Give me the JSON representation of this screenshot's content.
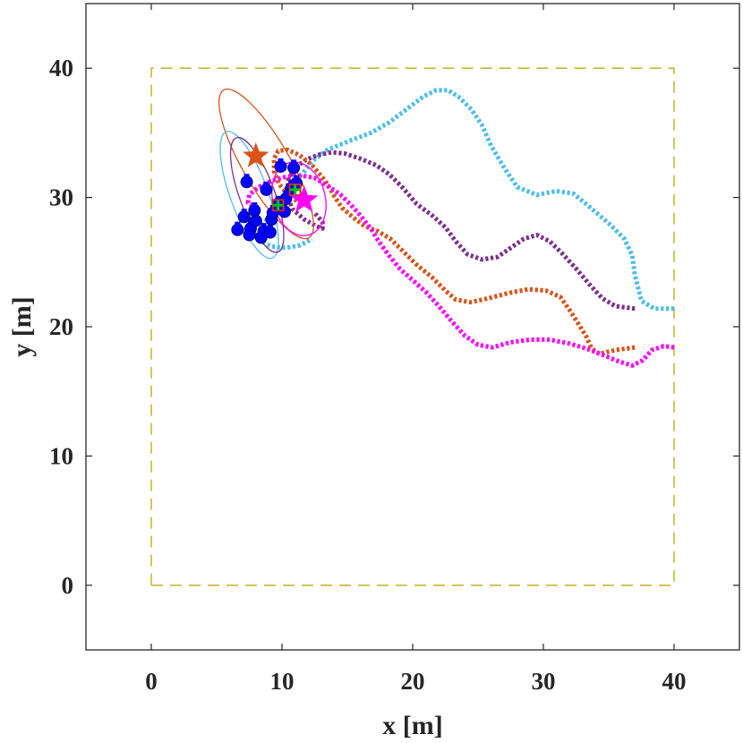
{
  "chart_data": {
    "type": "line",
    "title": "",
    "xlabel": "x [m]",
    "ylabel": "y [m]",
    "xlim": [
      -5,
      45
    ],
    "ylim": [
      -5,
      45
    ],
    "xticks": [
      0,
      10,
      20,
      30,
      40
    ],
    "yticks": [
      0,
      10,
      20,
      30,
      40
    ],
    "xtick_labels": [
      "0",
      "10",
      "20",
      "30",
      "40"
    ],
    "ytick_labels": [
      "0",
      "10",
      "20",
      "30",
      "40"
    ],
    "grid": false,
    "legend": "none",
    "boundary": {
      "name": "workspace-boundary",
      "color": "#C9B82C",
      "x": [
        0,
        40,
        40,
        0,
        0
      ],
      "y": [
        0,
        0,
        40,
        40,
        0
      ]
    },
    "series": [
      {
        "name": "trajectory-cyan",
        "color": "#4DBEEE",
        "x": [
          40,
          38.5,
          37.5,
          37,
          36.8,
          36.2,
          35,
          33.5,
          32.3,
          31,
          29.5,
          28,
          27,
          26,
          25.3,
          24.5,
          23.5,
          22.7,
          21.8,
          20.8,
          19.5,
          18.2,
          16.8,
          15.2,
          13.5,
          12.3,
          11.3,
          10.4,
          9.4,
          8.6,
          8.3,
          8.4,
          9.2,
          10.3,
          11.4,
          12.3
        ],
        "y": [
          21.4,
          21.4,
          22,
          24,
          25.5,
          26.8,
          28,
          29.3,
          30.3,
          30.5,
          30.2,
          30.8,
          32.3,
          34,
          35.6,
          36.8,
          37.8,
          38.3,
          38.3,
          37.8,
          36.8,
          35.8,
          35,
          34.4,
          33.7,
          32.8,
          31.5,
          30.2,
          29,
          28,
          27.2,
          26.6,
          26.2,
          26.1,
          26.3,
          26.8
        ]
      },
      {
        "name": "trajectory-purple",
        "color": "#7E2F8E",
        "x": [
          37,
          35.5,
          34.5,
          33.5,
          32.5,
          31.5,
          30.5,
          29.5,
          28.5,
          27.5,
          26.5,
          25.3,
          24.2,
          23.3,
          22.5,
          21.5,
          20.3,
          19.2,
          18.2,
          17.2,
          16,
          14.8,
          13.8,
          12.8,
          11.8,
          11,
          10.5,
          10.4,
          10.8,
          11.7,
          12.6,
          13.1,
          13.1,
          12.5
        ],
        "y": [
          21.4,
          21.6,
          22.2,
          23.3,
          24.5,
          25.6,
          26.6,
          27.1,
          26.8,
          26.1,
          25.4,
          25.2,
          25.6,
          26.6,
          27.7,
          28.6,
          29.5,
          30.8,
          31.8,
          32.5,
          33,
          33.4,
          33.5,
          33.3,
          32.9,
          32.3,
          31.4,
          30.2,
          29.1,
          28.3,
          27.8,
          27.6,
          28.1,
          28.8
        ]
      },
      {
        "name": "trajectory-orange",
        "color": "#D95319",
        "x": [
          37,
          35.5,
          34.3,
          33.7,
          33.3,
          32.7,
          32,
          31.3,
          30.2,
          28.8,
          27.3,
          25.8,
          24.4,
          23.3,
          22.5,
          21.5,
          20.3,
          19.3,
          18.3,
          17.3,
          16.3,
          15.4,
          14.6,
          14,
          13.3,
          12.3,
          11.3,
          10.4,
          9.7,
          9.4,
          9.4,
          9.8,
          10.5,
          11.3
        ],
        "y": [
          18.4,
          18.2,
          17.9,
          18.3,
          19.2,
          20.2,
          21.3,
          22.3,
          22.8,
          22.9,
          22.6,
          22.2,
          21.9,
          22.1,
          22.8,
          23.8,
          24.8,
          25.8,
          26.8,
          27.4,
          27.8,
          28.5,
          29.2,
          30.1,
          31.3,
          32.5,
          33.3,
          33.7,
          33.6,
          33,
          32,
          31,
          30.2,
          29.6
        ]
      },
      {
        "name": "trajectory-magenta",
        "color": "#FF00FF",
        "x": [
          40,
          39.2,
          38.3,
          37.6,
          36.8,
          35.8,
          34.6,
          33.3,
          32,
          30.5,
          29,
          27.5,
          26.1,
          25,
          24,
          23,
          22,
          21,
          20,
          19,
          18.2,
          17.4,
          16.8,
          16,
          15.3,
          14.5,
          13.5,
          12.5,
          11.5,
          10.3,
          9.2,
          8.2,
          7.5,
          7.4,
          8
        ],
        "y": [
          18.4,
          18.5,
          18.2,
          17.4,
          17,
          17.3,
          17.8,
          18.3,
          18.7,
          19,
          19,
          18.8,
          18.4,
          18.6,
          19.3,
          20.4,
          21.6,
          22.7,
          23.6,
          24.5,
          25.5,
          26.6,
          27.6,
          28.6,
          29.4,
          30.2,
          30.9,
          31.5,
          31.7,
          31.6,
          31.3,
          30.8,
          30.2,
          29.6,
          29.2
        ]
      }
    ],
    "ellipses": [
      {
        "name": "ellipse-orange",
        "color": "#D95319",
        "center": [
          8.8,
          32.6
        ],
        "semi_axes": [
          1.8,
          6.6
        ],
        "rotation_deg": -30
      },
      {
        "name": "ellipse-cyan",
        "color": "#4DBEEE",
        "center": [
          7.5,
          30.2
        ],
        "semi_axes": [
          1.45,
          5.2
        ],
        "rotation_deg": -20
      },
      {
        "name": "ellipse-purple",
        "color": "#7E2F8E",
        "center": [
          8.1,
          30.2
        ],
        "semi_axes": [
          1.35,
          4.7
        ],
        "rotation_deg": -20
      },
      {
        "name": "ellipse-magenta",
        "color": "#FF00FF",
        "center": [
          11.3,
          29.9
        ],
        "semi_axes": [
          2.0,
          2.9
        ],
        "rotation_deg": -15
      }
    ],
    "targets": [
      {
        "name": "target-star-orange",
        "color": "#D95319",
        "x": 8.0,
        "y": 33.2,
        "size": 14
      },
      {
        "name": "target-star-magenta",
        "color": "#FF00FF",
        "x": 11.7,
        "y": 29.8,
        "size": 15
      }
    ],
    "agents": {
      "color": "#0000FF",
      "cross_color": "#00C000",
      "square_color": "#E02020",
      "points": [
        [
          7.1,
          28.5
        ],
        [
          7.6,
          27.6
        ],
        [
          8.0,
          28.2
        ],
        [
          8.6,
          27.4
        ],
        [
          9.1,
          27.3
        ],
        [
          9.2,
          28.3
        ],
        [
          10.2,
          28.9
        ],
        [
          9.7,
          29.5
        ],
        [
          10.7,
          30.7
        ],
        [
          11.1,
          31.1
        ],
        [
          9.9,
          32.4
        ],
        [
          10.9,
          32.3
        ],
        [
          7.5,
          27.1
        ],
        [
          8.4,
          26.9
        ],
        [
          7.3,
          31.2
        ],
        [
          6.6,
          27.5
        ],
        [
          8.8,
          30.6
        ],
        [
          10.3,
          29.9
        ],
        [
          9.3,
          28.8
        ],
        [
          7.9,
          29.0
        ]
      ],
      "markers": [
        [
          9.7,
          29.4
        ],
        [
          11.0,
          30.6
        ]
      ]
    }
  }
}
